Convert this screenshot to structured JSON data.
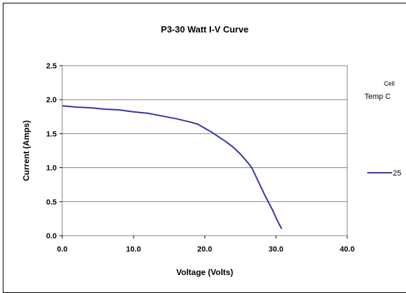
{
  "chart_data": {
    "type": "line",
    "title": "P3-30 Watt  I-V Curve",
    "xlabel": "Voltage (Volts)",
    "ylabel": "Current (Amps)",
    "xlim": [
      0,
      40
    ],
    "ylim": [
      0,
      2.5
    ],
    "x_ticks": [
      "0.0",
      "10.0",
      "20.0",
      "30.0",
      "40.0"
    ],
    "y_ticks": [
      "0.0",
      "0.5",
      "1.0",
      "1.5",
      "2.0",
      "2.5"
    ],
    "grid": "horizontal",
    "legend": {
      "title_line1": "Cell",
      "title_line2": "Temp C",
      "placement": "right"
    },
    "series": [
      {
        "name": "25",
        "color": "#3333aa",
        "x": [
          0,
          2,
          4,
          6,
          8,
          10,
          12,
          14,
          16,
          18,
          19,
          20,
          21,
          22,
          23,
          24,
          25,
          26,
          26.6,
          27.5,
          28.5,
          29.5,
          30.2,
          30.8
        ],
        "y": [
          1.91,
          1.89,
          1.88,
          1.86,
          1.85,
          1.82,
          1.8,
          1.76,
          1.72,
          1.67,
          1.64,
          1.58,
          1.52,
          1.45,
          1.38,
          1.3,
          1.2,
          1.08,
          1.0,
          0.8,
          0.58,
          0.38,
          0.22,
          0.1
        ]
      }
    ]
  }
}
